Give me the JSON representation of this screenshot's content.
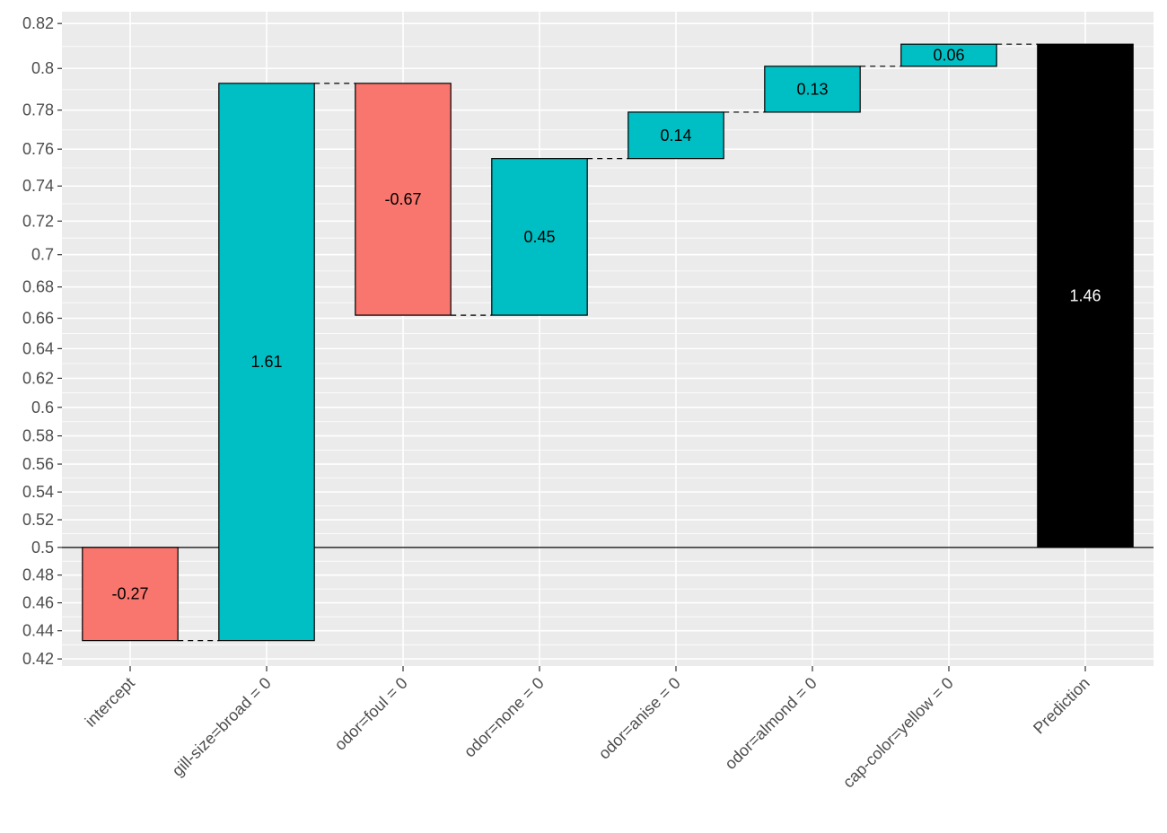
{
  "chart_data": {
    "type": "waterfall",
    "categories": [
      "intercept",
      "gill-size=broad = 0",
      "odor=foul = 0",
      "odor=none = 0",
      "odor=anise = 0",
      "odor=almond = 0",
      "cap-color=yellow = 0",
      "Prediction"
    ],
    "bars": [
      {
        "start": 0.5,
        "end": 0.433,
        "label": "-0.27",
        "kind": "negative"
      },
      {
        "start": 0.433,
        "end": 0.793,
        "label": "1.61",
        "kind": "positive"
      },
      {
        "start": 0.793,
        "end": 0.662,
        "label": "-0.67",
        "kind": "negative"
      },
      {
        "start": 0.662,
        "end": 0.755,
        "label": "0.45",
        "kind": "positive"
      },
      {
        "start": 0.755,
        "end": 0.779,
        "label": "0.14",
        "kind": "positive"
      },
      {
        "start": 0.779,
        "end": 0.801,
        "label": "0.13",
        "kind": "positive"
      },
      {
        "start": 0.801,
        "end": 0.811,
        "label": "0.06",
        "kind": "positive"
      },
      {
        "start": 0.5,
        "end": 0.811,
        "label": "1.46",
        "kind": "total"
      }
    ],
    "baseline": 0.5,
    "ylim": [
      0.415,
      0.825
    ],
    "yticks": [
      "0.42",
      "0.44",
      "0.46",
      "0.48",
      "0.5",
      "0.52",
      "0.54",
      "0.56",
      "0.58",
      "0.6",
      "0.62",
      "0.64",
      "0.66",
      "0.68",
      "0.7",
      "0.72",
      "0.74",
      "0.76",
      "0.78",
      "0.8",
      "0.82"
    ],
    "scale": "logit",
    "title": "",
    "xlabel": "",
    "ylabel": "",
    "grid": true,
    "colors": {
      "positive": "#00BFC4",
      "negative": "#F8766D",
      "total": "#000000",
      "panel": "#EBEBEB",
      "grid": "#FFFFFF",
      "text": "#4D4D4D"
    }
  }
}
